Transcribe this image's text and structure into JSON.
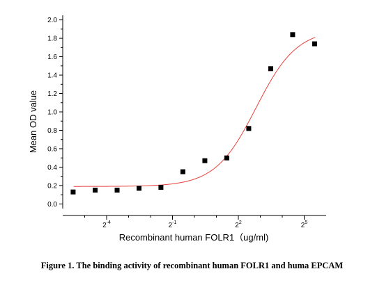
{
  "chart_data": {
    "type": "scatter",
    "xlabel": "Recombinant human  FOLR1（ug/ml)",
    "ylabel": "Mean OD value",
    "xscale": "log2",
    "xlim_log2": [
      -6,
      6
    ],
    "ylim": [
      -0.05,
      2.05
    ],
    "yticks": [
      "0.0",
      "0.2",
      "0.4",
      "0.6",
      "0.8",
      "1.0",
      "1.2",
      "1.4",
      "1.6",
      "1.8",
      "2.0"
    ],
    "xticks": [
      {
        "base": "2",
        "exp": "-4",
        "log2": -4
      },
      {
        "base": "2",
        "exp": "-1",
        "log2": -1
      },
      {
        "base": "2",
        "exp": "2",
        "log2": 2
      },
      {
        "base": "2",
        "exp": "5",
        "log2": 5
      }
    ],
    "points": [
      {
        "x": 0.0217,
        "y": 0.13
      },
      {
        "x": 0.0435,
        "y": 0.15
      },
      {
        "x": 0.087,
        "y": 0.15
      },
      {
        "x": 0.174,
        "y": 0.17
      },
      {
        "x": 0.347,
        "y": 0.18
      },
      {
        "x": 0.694,
        "y": 0.35
      },
      {
        "x": 1.389,
        "y": 0.47
      },
      {
        "x": 2.778,
        "y": 0.5
      },
      {
        "x": 5.556,
        "y": 0.82
      },
      {
        "x": 11.11,
        "y": 1.47
      },
      {
        "x": 22.22,
        "y": 1.84
      },
      {
        "x": 44.44,
        "y": 1.74
      }
    ],
    "fit": {
      "type": "sigmoid",
      "bottom": 0.19,
      "top": 1.9,
      "ec50": 7.0,
      "hill": 1.55
    },
    "marker_color": "#000000",
    "fit_color": "#e8413c",
    "grid": false,
    "legend": "none"
  },
  "caption": "Figure 1. The binding activity of recombinant human FOLR1 and huma EPCAM"
}
